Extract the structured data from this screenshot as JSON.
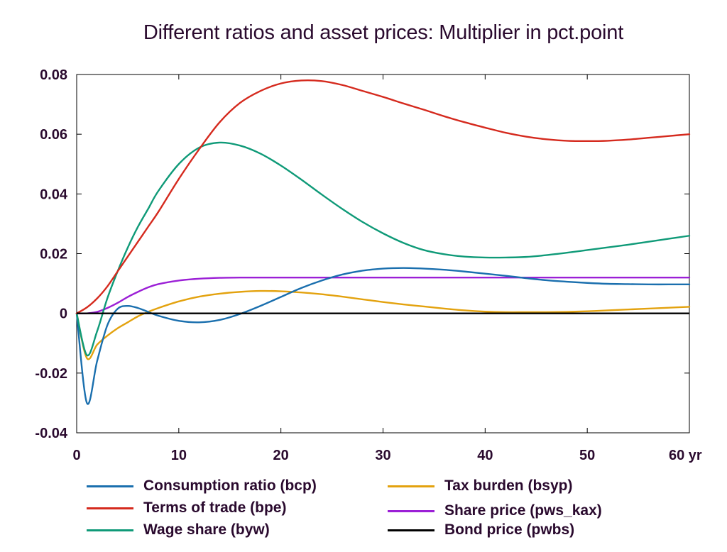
{
  "chart_data": {
    "type": "line",
    "title": "Different ratios and asset prices: Multiplier in pct.point",
    "xlim": [
      0,
      60
    ],
    "ylim": [
      -0.04,
      0.08
    ],
    "x_ticks": [
      0,
      10,
      20,
      30,
      40,
      50,
      60
    ],
    "x_tick_labels": [
      "0",
      "10",
      "20",
      "30",
      "40",
      "50",
      "60 yr"
    ],
    "y_ticks": [
      -0.04,
      -0.02,
      0,
      0.02,
      0.04,
      0.06,
      0.08
    ],
    "y_tick_labels": [
      "-0.04",
      "-0.02",
      "0",
      "0.02",
      "0.04",
      "0.06",
      "0.08"
    ],
    "grid": false,
    "legend_position": "bottom",
    "series": [
      {
        "name": "Consumption ratio (bcp)",
        "color": "#1a6fae",
        "x": [
          0,
          1,
          2,
          3,
          4,
          5,
          6,
          7,
          8,
          10,
          12,
          14,
          16,
          18,
          20,
          22,
          24,
          26,
          28,
          30,
          32,
          34,
          36,
          38,
          40,
          42,
          44,
          46,
          48,
          50,
          52,
          54,
          56,
          58,
          60
        ],
        "values": [
          0,
          -0.03,
          -0.016,
          -0.004,
          0.0015,
          0.0025,
          0.0018,
          0.0005,
          -0.0008,
          -0.0025,
          -0.003,
          -0.0022,
          -0.0002,
          0.0025,
          0.0055,
          0.0085,
          0.011,
          0.013,
          0.0143,
          0.015,
          0.0152,
          0.015,
          0.0146,
          0.014,
          0.0133,
          0.0126,
          0.0118,
          0.0111,
          0.0106,
          0.0102,
          0.0099,
          0.0098,
          0.0097,
          0.0097,
          0.0097
        ]
      },
      {
        "name": "Terms of trade (bpe)",
        "color": "#d52a1e",
        "x": [
          0,
          1,
          2,
          3,
          4,
          5,
          6,
          7,
          8,
          10,
          12,
          14,
          16,
          18,
          20,
          22,
          24,
          26,
          28,
          30,
          32,
          34,
          36,
          38,
          40,
          42,
          44,
          46,
          48,
          50,
          52,
          54,
          56,
          58,
          60
        ],
        "values": [
          0,
          0.002,
          0.005,
          0.009,
          0.014,
          0.019,
          0.024,
          0.029,
          0.034,
          0.045,
          0.055,
          0.064,
          0.0705,
          0.0745,
          0.077,
          0.078,
          0.0778,
          0.0765,
          0.0745,
          0.0725,
          0.0703,
          0.0682,
          0.066,
          0.064,
          0.0622,
          0.0605,
          0.0592,
          0.0583,
          0.0578,
          0.0577,
          0.0578,
          0.0582,
          0.0588,
          0.0594,
          0.06
        ]
      },
      {
        "name": "Wage share (byw)",
        "color": "#0f9a78",
        "x": [
          0,
          1,
          2,
          3,
          4,
          5,
          6,
          7,
          8,
          10,
          12,
          14,
          16,
          18,
          20,
          22,
          24,
          26,
          28,
          30,
          32,
          34,
          36,
          38,
          40,
          42,
          44,
          46,
          48,
          50,
          52,
          54,
          56,
          58,
          60
        ],
        "values": [
          0,
          -0.014,
          -0.006,
          0.005,
          0.014,
          0.022,
          0.029,
          0.035,
          0.041,
          0.05,
          0.0555,
          0.0572,
          0.0562,
          0.0535,
          0.0495,
          0.0448,
          0.0398,
          0.035,
          0.0306,
          0.0268,
          0.0236,
          0.0212,
          0.0198,
          0.019,
          0.0187,
          0.0187,
          0.0189,
          0.0195,
          0.0203,
          0.0212,
          0.0221,
          0.023,
          0.024,
          0.025,
          0.026
        ]
      },
      {
        "name": "Tax burden (bsyp)",
        "color": "#e3a20e",
        "x": [
          0,
          1,
          2,
          3,
          4,
          5,
          6,
          7,
          8,
          10,
          12,
          14,
          16,
          18,
          20,
          22,
          24,
          26,
          28,
          30,
          32,
          34,
          36,
          38,
          40,
          42,
          44,
          46,
          48,
          50,
          52,
          54,
          56,
          58,
          60
        ],
        "values": [
          0,
          -0.015,
          -0.0105,
          -0.0075,
          -0.005,
          -0.003,
          -0.001,
          0.0005,
          0.0018,
          0.004,
          0.0056,
          0.0066,
          0.0072,
          0.0075,
          0.0074,
          0.007,
          0.0064,
          0.0056,
          0.0047,
          0.0038,
          0.003,
          0.0023,
          0.0016,
          0.001,
          0.0006,
          0.0004,
          0.0004,
          0.0004,
          0.0005,
          0.0007,
          0.001,
          0.0013,
          0.0016,
          0.0019,
          0.0022
        ]
      },
      {
        "name": "Share price (pws_kax)",
        "color": "#9b1fd6",
        "x": [
          0,
          1,
          2,
          3,
          4,
          5,
          6,
          7,
          8,
          10,
          12,
          14,
          16,
          18,
          20,
          25,
          30,
          35,
          40,
          45,
          50,
          55,
          60
        ],
        "values": [
          0,
          0,
          0.0005,
          0.0018,
          0.0035,
          0.0055,
          0.0072,
          0.0087,
          0.0098,
          0.011,
          0.0116,
          0.0119,
          0.012,
          0.012,
          0.012,
          0.012,
          0.012,
          0.012,
          0.012,
          0.012,
          0.012,
          0.012,
          0.012
        ]
      },
      {
        "name": "Bond price (pwbs)",
        "color": "#000000",
        "x": [
          0,
          60
        ],
        "values": [
          0,
          0
        ]
      }
    ]
  }
}
